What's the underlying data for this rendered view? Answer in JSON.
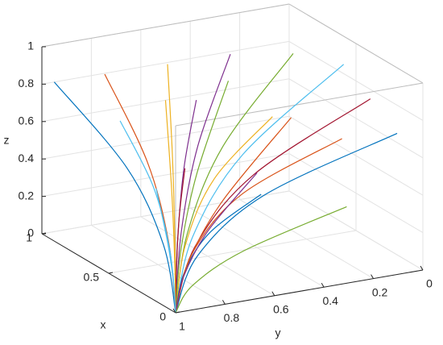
{
  "chart_data": {
    "type": "line3d",
    "xlabel": "x",
    "ylabel": "y",
    "zlabel": "z",
    "xlim": [
      0,
      1
    ],
    "ylim": [
      0,
      1
    ],
    "zlim": [
      0,
      1
    ],
    "xticks": [
      0,
      0.5,
      1
    ],
    "yticks": [
      0,
      0.2,
      0.4,
      0.6,
      0.8,
      1
    ],
    "zticks": [
      0,
      0.2,
      0.4,
      0.6,
      0.8,
      1
    ],
    "y_reversed": true,
    "grid": true,
    "series": [
      {
        "color": "#0072bd",
        "x": [
          0,
          0.1,
          0.4,
          1
        ],
        "y": [
          1,
          0.995,
          0.98,
          0.95
        ],
        "z": [
          0,
          0.32,
          0.6,
          0.8
        ]
      },
      {
        "color": "#d95319",
        "x": [
          0,
          0.09,
          0.36,
          0.9
        ],
        "y": [
          1,
          0.98,
          0.92,
          0.8
        ],
        "z": [
          0,
          0.34,
          0.6375,
          0.85
        ]
      },
      {
        "color": "#edb120",
        "x": [
          0,
          0.08,
          0.32,
          0.8
        ],
        "y": [
          1,
          0.96,
          0.84,
          0.6
        ],
        "z": [
          0,
          0.36,
          0.675,
          0.9
        ]
      },
      {
        "color": "#7e2f8e",
        "x": [
          0,
          0.07,
          0.28,
          0.7
        ],
        "y": [
          1,
          0.94,
          0.76,
          0.4
        ],
        "z": [
          0,
          0.38,
          0.7125,
          0.95
        ]
      },
      {
        "color": "#77ac30",
        "x": [
          0,
          0.06,
          0.24,
          0.6
        ],
        "y": [
          1,
          0.92,
          0.68,
          0.2
        ],
        "z": [
          0,
          0.38,
          0.7125,
          0.95
        ]
      },
      {
        "color": "#4dbeee",
        "x": [
          0,
          0.05,
          0.2,
          0.5
        ],
        "y": [
          1,
          0.905,
          0.62,
          0.05
        ],
        "z": [
          0,
          0.36,
          0.675,
          0.9
        ]
      },
      {
        "color": "#a2142f",
        "x": [
          0,
          0.03,
          0.12,
          0.3
        ],
        "y": [
          1,
          0.905,
          0.62,
          0.05
        ],
        "z": [
          0,
          0.32,
          0.6,
          0.8
        ]
      },
      {
        "color": "#0072bd",
        "x": [
          0,
          0.01,
          0.04,
          0.1
        ],
        "y": [
          1,
          0.905,
          0.62,
          0.05
        ],
        "z": [
          0,
          0.28,
          0.525,
          0.7
        ]
      },
      {
        "color": "#d95319",
        "x": [
          0,
          0.005,
          0.02,
          0.05
        ],
        "y": [
          1,
          0.93,
          0.72,
          0.3
        ],
        "z": [
          0,
          0.3,
          0.5625,
          0.75
        ]
      },
      {
        "color": "#edb120",
        "x": [
          0,
          0.02,
          0.08,
          0.2
        ],
        "y": [
          1,
          0.95,
          0.8,
          0.5
        ],
        "z": [
          0,
          0.34,
          0.6375,
          0.85
        ]
      },
      {
        "color": "#7e2f8e",
        "x": [
          0,
          0.04,
          0.16,
          0.4
        ],
        "y": [
          1,
          0.97,
          0.88,
          0.7
        ],
        "z": [
          0,
          0.36,
          0.675,
          0.9
        ]
      },
      {
        "color": "#77ac30",
        "x": [
          0,
          0.09,
          0.36,
          0.9
        ],
        "y": [
          1,
          0.93,
          0.72,
          0.3
        ],
        "z": [
          0,
          0.28,
          0.525,
          0.7
        ]
      },
      {
        "color": "#4dbeee",
        "x": [
          0,
          0.06,
          0.24,
          0.6
        ],
        "y": [
          1,
          0.99,
          0.96,
          0.9
        ],
        "z": [
          0,
          0.3,
          0.5625,
          0.75
        ]
      },
      {
        "color": "#a2142f",
        "x": [
          0,
          0.03,
          0.12,
          0.3
        ],
        "y": [
          1,
          0.98,
          0.92,
          0.8
        ],
        "z": [
          0,
          0.24,
          0.45,
          0.6
        ]
      },
      {
        "color": "#0072bd",
        "x": [
          0,
          0.01,
          0.04,
          0.1
        ],
        "y": [
          1,
          0.96,
          0.84,
          0.6
        ],
        "z": [
          0,
          0.2,
          0.375,
          0.5
        ]
      },
      {
        "color": "#d95319",
        "x": [
          0,
          0.08,
          0.32,
          0.8
        ],
        "y": [
          1,
          0.91,
          0.64,
          0.1
        ],
        "z": [
          0,
          0.2,
          0.375,
          0.5
        ]
      },
      {
        "color": "#edb120",
        "x": [
          0,
          0.1,
          0.4,
          1
        ],
        "y": [
          1,
          0.95,
          0.8,
          0.5
        ],
        "z": [
          0,
          0.24,
          0.45,
          0.6
        ]
      },
      {
        "color": "#7e2f8e",
        "x": [
          0,
          0.05,
          0.2,
          0.5
        ],
        "y": [
          1,
          0.94,
          0.76,
          0.4
        ],
        "z": [
          0,
          0.16,
          0.3,
          0.4
        ]
      },
      {
        "color": "#77ac30",
        "x": [
          0,
          0.02,
          0.08,
          0.2
        ],
        "y": [
          1,
          0.92,
          0.68,
          0.2
        ],
        "z": [
          0,
          0.12,
          0.225,
          0.3
        ]
      },
      {
        "color": "#4dbeee",
        "x": [
          0,
          0.07,
          0.28,
          0.7
        ],
        "y": [
          1,
          0.97,
          0.88,
          0.7
        ],
        "z": [
          0,
          0.12,
          0.225,
          0.3
        ]
      }
    ]
  }
}
